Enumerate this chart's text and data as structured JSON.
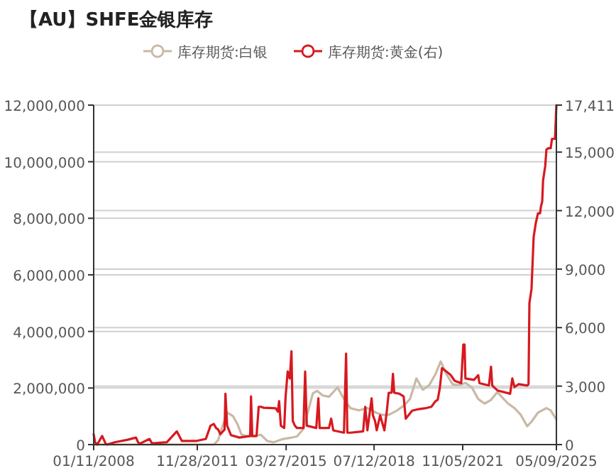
{
  "chart_data": {
    "type": "line",
    "title": "【AU】SHFE金银库存",
    "legend": "top",
    "grid": "y",
    "xlim": [
      "2008-01-11",
      "2025-05-09"
    ],
    "xticks": [
      {
        "value": "2008-01-11",
        "label": "01/11/2008"
      },
      {
        "value": "2011-11-28",
        "label": "11/28/2011"
      },
      {
        "value": "2015-03-27",
        "label": "03/27/2015"
      },
      {
        "value": "2018-07-12",
        "label": "07/12/2018"
      },
      {
        "value": "2021-11-05",
        "label": "11/05/2021"
      },
      {
        "value": "2025-05-09",
        "label": "05/09/2025"
      }
    ],
    "ylim": [
      0,
      12000000
    ],
    "yticks": [
      0,
      {
        "value": 2000000,
        "label": "2,000,000"
      },
      {
        "value": 4000000,
        "label": "4,000,000"
      },
      {
        "value": 6000000,
        "label": "6,000,000"
      },
      {
        "value": 8000000,
        "label": "8,000,000"
      },
      {
        "value": 10000000,
        "label": "10,000,000"
      },
      {
        "value": 12000000,
        "label": "12,000,000"
      }
    ],
    "y2lim": [
      0,
      17411
    ],
    "y2ticks": [
      0,
      {
        "value": 3000,
        "label": "3,000"
      },
      {
        "value": 6000,
        "label": "6,000"
      },
      {
        "value": 9000,
        "label": "9,000"
      },
      {
        "value": 12000,
        "label": "12,000"
      },
      {
        "value": 15000,
        "label": "15,000"
      },
      {
        "value": 17411,
        "label": "17,411"
      }
    ],
    "series": [
      {
        "name": "库存期货:白银",
        "color": "#c9b9a5",
        "axis": "y",
        "x": [
          "2008-01-11",
          "2012-07-12",
          "2012-09-09",
          "2012-11-06",
          "2013-01-15",
          "2013-04-01",
          "2013-05-29",
          "2013-07-26",
          "2013-10-22",
          "2014-01-17",
          "2014-04-15",
          "2014-07-11",
          "2014-10-07",
          "2015-01-31",
          "2015-05-28",
          "2015-08-23",
          "2015-11-19",
          "2016-01-16",
          "2016-03-26",
          "2016-05-23",
          "2016-08-07",
          "2016-11-02",
          "2017-02-27",
          "2017-05-26",
          "2017-08-21",
          "2017-12-16",
          "2018-04-11",
          "2018-08-06",
          "2018-11-01",
          "2019-01-28",
          "2019-05-24",
          "2019-08-20",
          "2019-11-15",
          "2020-02-11",
          "2020-05-08",
          "2020-08-04",
          "2020-10-30",
          "2021-01-08",
          "2021-03-25",
          "2021-06-20",
          "2021-09-16",
          "2021-12-12",
          "2022-03-10",
          "2022-06-05",
          "2022-08-31",
          "2022-11-27",
          "2023-02-22",
          "2023-04-21",
          "2023-07-18",
          "2023-10-14",
          "2024-01-09",
          "2024-04-05",
          "2024-06-03",
          "2024-08-30",
          "2024-12-24",
          "2025-02-20",
          "2025-05-09"
        ],
        "values": [
          0,
          0,
          160000,
          650000,
          1130000,
          1000000,
          730000,
          350000,
          290000,
          290000,
          350000,
          130000,
          80000,
          190000,
          240000,
          290000,
          560000,
          1130000,
          1810000,
          1900000,
          1740000,
          1690000,
          2020000,
          1610000,
          1290000,
          1210000,
          1290000,
          1130000,
          1050000,
          1050000,
          1210000,
          1370000,
          1610000,
          2340000,
          1940000,
          2100000,
          2500000,
          2940000,
          2500000,
          2130000,
          2100000,
          2180000,
          2020000,
          1610000,
          1450000,
          1580000,
          1860000,
          1690000,
          1450000,
          1290000,
          1050000,
          650000,
          810000,
          1130000,
          1290000,
          1210000,
          890000
        ]
      },
      {
        "name": "库存期货:黄金(右)",
        "color": "#d7191f",
        "axis": "y2",
        "x": [
          "2008-01-11",
          "2008-01-31",
          "2008-02-28",
          "2008-05-06",
          "2008-06-22",
          "2008-07-13",
          "2008-10-23",
          "2009-04-11",
          "2009-08-12",
          "2009-09-08",
          "2009-10-05",
          "2010-02-12",
          "2010-03-18",
          "2010-04-07",
          "2010-10-08",
          "2011-02-21",
          "2011-04-30",
          "2011-06-03",
          "2011-11-21",
          "2012-03-24",
          "2012-05-27",
          "2012-07-12",
          "2012-08-11",
          "2012-09-09",
          "2012-10-08",
          "2012-12-05",
          "2012-12-17",
          "2013-01-09",
          "2013-03-03",
          "2013-06-27",
          "2013-11-20",
          "2013-12-02",
          "2013-12-19",
          "2014-02-15",
          "2014-03-17",
          "2014-04-15",
          "2014-05-25",
          "2014-11-05",
          "2014-12-04",
          "2014-12-21",
          "2015-01-14",
          "2015-03-01",
          "2015-03-19",
          "2015-04-17",
          "2015-05-16",
          "2015-06-08",
          "2015-06-26",
          "2015-07-25",
          "2015-08-23",
          "2015-11-19",
          "2015-12-12",
          "2016-01-04",
          "2016-05-12",
          "2016-06-10",
          "2016-06-27",
          "2016-11-02",
          "2016-12-02",
          "2016-12-31",
          "2017-05-26",
          "2017-06-24",
          "2017-07-11",
          "2017-08-21",
          "2018-02-12",
          "2018-03-13",
          "2018-04-11",
          "2018-06-08",
          "2018-06-26",
          "2018-07-25",
          "2018-08-17",
          "2018-10-03",
          "2018-11-30",
          "2018-12-30",
          "2019-01-28",
          "2019-03-09",
          "2019-03-27",
          "2019-04-13",
          "2019-06-22",
          "2019-08-20",
          "2019-09-18",
          "2019-12-14",
          "2020-03-11",
          "2020-06-06",
          "2020-09-02",
          "2020-10-30",
          "2020-11-28",
          "2020-12-27",
          "2021-01-25",
          "2021-03-25",
          "2021-05-22",
          "2021-07-19",
          "2021-10-15",
          "2021-11-13",
          "2021-11-30",
          "2021-12-12",
          "2022-04-08",
          "2022-06-05",
          "2022-06-22",
          "2022-10-29",
          "2022-11-27",
          "2022-12-14",
          "2023-02-22",
          "2023-08-16",
          "2023-09-14",
          "2023-10-14",
          "2023-12-11",
          "2024-04-05",
          "2024-04-23",
          "2024-05-05",
          "2024-06-03",
          "2024-07-02",
          "2024-08-01",
          "2024-08-30",
          "2024-09-28",
          "2024-10-10",
          "2024-10-27",
          "2024-11-08",
          "2024-12-07",
          "2024-12-24",
          "2025-01-22",
          "2025-02-20",
          "2025-03-10",
          "2025-04-20",
          "2025-05-09"
        ],
        "values": [
          530,
          120,
          0,
          440,
          50,
          0,
          120,
          240,
          360,
          120,
          50,
          290,
          70,
          70,
          120,
          680,
          190,
          190,
          190,
          290,
          970,
          1060,
          850,
          770,
          530,
          770,
          2610,
          970,
          480,
          360,
          440,
          2470,
          440,
          440,
          1940,
          1940,
          1890,
          1860,
          1690,
          2230,
          970,
          850,
          2420,
          3750,
          3390,
          4790,
          1210,
          970,
          850,
          850,
          3750,
          970,
          850,
          2370,
          850,
          850,
          1330,
          730,
          610,
          4670,
          610,
          610,
          680,
          1940,
          730,
          2370,
          1500,
          1210,
          730,
          1500,
          730,
          1620,
          2660,
          2660,
          3630,
          2660,
          2610,
          2470,
          1330,
          1740,
          1820,
          1860,
          1940,
          2230,
          2300,
          2900,
          3920,
          3750,
          3580,
          3270,
          3150,
          5130,
          5130,
          3390,
          3320,
          3560,
          3150,
          3030,
          3990,
          3030,
          2780,
          2610,
          3390,
          2950,
          3100,
          3030,
          3100,
          7260,
          7990,
          10650,
          11370,
          11860,
          11860,
          12220,
          12460,
          13550,
          14280,
          15130,
          15200,
          15200,
          15680,
          15680,
          17411
        ]
      }
    ]
  }
}
